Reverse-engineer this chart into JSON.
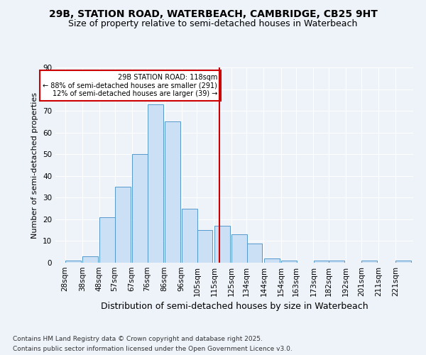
{
  "title1": "29B, STATION ROAD, WATERBEACH, CAMBRIDGE, CB25 9HT",
  "title2": "Size of property relative to semi-detached houses in Waterbeach",
  "xlabel": "Distribution of semi-detached houses by size in Waterbeach",
  "ylabel": "Number of semi-detached properties",
  "bin_labels": [
    "28sqm",
    "38sqm",
    "48sqm",
    "57sqm",
    "67sqm",
    "76sqm",
    "86sqm",
    "96sqm",
    "105sqm",
    "115sqm",
    "125sqm",
    "134sqm",
    "144sqm",
    "154sqm",
    "163sqm",
    "173sqm",
    "182sqm",
    "192sqm",
    "201sqm",
    "211sqm",
    "221sqm"
  ],
  "bin_starts": [
    28,
    38,
    48,
    57,
    67,
    76,
    86,
    96,
    105,
    115,
    125,
    134,
    144,
    154,
    163,
    173,
    182,
    192,
    201,
    211,
    221
  ],
  "heights": [
    1,
    3,
    21,
    35,
    50,
    73,
    65,
    25,
    15,
    17,
    13,
    9,
    2,
    1,
    0,
    1,
    1,
    0,
    1,
    0,
    1
  ],
  "bar_color": "#cce0f5",
  "bar_edge_color": "#5599cc",
  "vline_x": 118,
  "vline_color": "#cc0000",
  "annotation_text": "29B STATION ROAD: 118sqm\n← 88% of semi-detached houses are smaller (291)\n12% of semi-detached houses are larger (39) →",
  "annotation_box_color": "#cc0000",
  "ylim": [
    0,
    90
  ],
  "yticks": [
    0,
    10,
    20,
    30,
    40,
    50,
    60,
    70,
    80,
    90
  ],
  "footer1": "Contains HM Land Registry data © Crown copyright and database right 2025.",
  "footer2": "Contains public sector information licensed under the Open Government Licence v3.0.",
  "background_color": "#eef3fa",
  "grid_color": "#ffffff",
  "title1_fontsize": 10,
  "title2_fontsize": 9,
  "xlabel_fontsize": 9,
  "ylabel_fontsize": 8,
  "tick_fontsize": 7.5,
  "footer_fontsize": 6.5
}
